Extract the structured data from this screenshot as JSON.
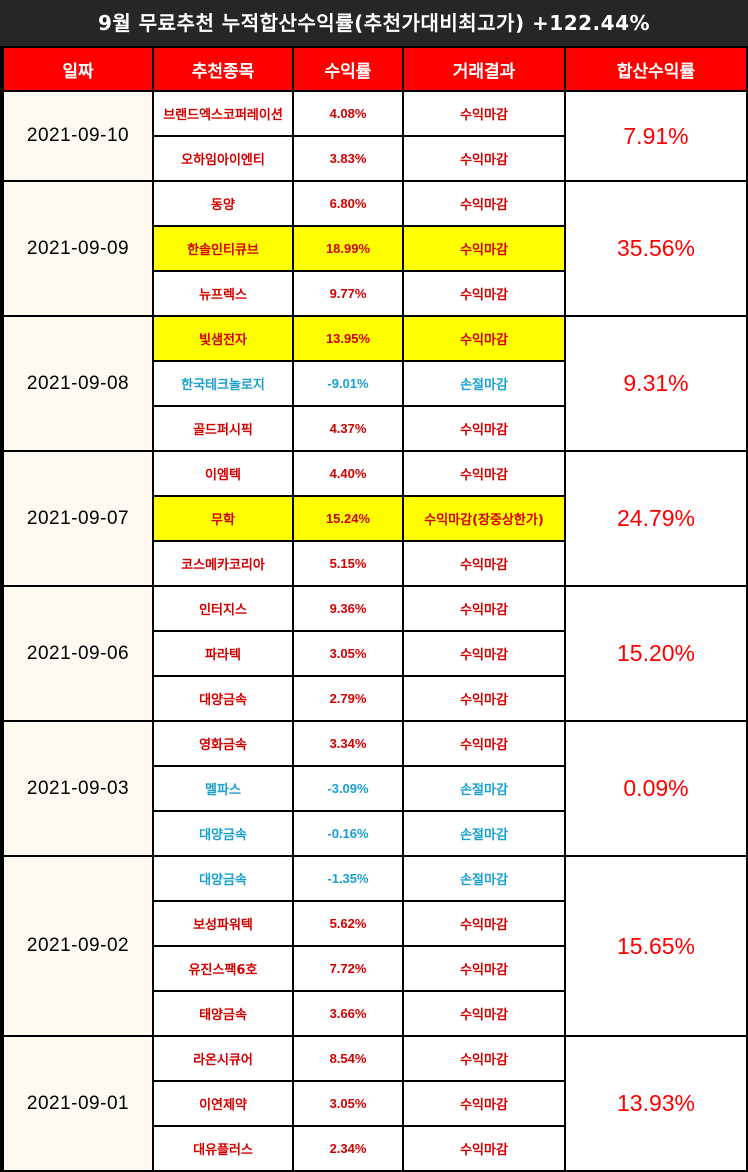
{
  "title": "9월 무료추천 누적합산수익률(추천가대비최고가) +122.44%",
  "headers": {
    "date": "일짜",
    "stock": "추천종목",
    "rate": "수익률",
    "result": "거래결과",
    "total": "합산수익률"
  },
  "colors": {
    "header_bg": "#ff0000",
    "profit_text": "#d40000",
    "loss_text": "#1aa0d0",
    "highlight_bg": "#ffff00",
    "date_bg": "#fff9f0"
  },
  "groups": [
    {
      "date": "2021-09-10",
      "total": "7.91%",
      "rows": [
        {
          "stock": "브랜드엑스코퍼레이션",
          "rate": "4.08%",
          "result": "수익마감",
          "type": "profit",
          "highlight": false
        },
        {
          "stock": "오하임아이엔티",
          "rate": "3.83%",
          "result": "수익마감",
          "type": "profit",
          "highlight": false
        }
      ]
    },
    {
      "date": "2021-09-09",
      "total": "35.56%",
      "rows": [
        {
          "stock": "동양",
          "rate": "6.80%",
          "result": "수익마감",
          "type": "profit",
          "highlight": false
        },
        {
          "stock": "한솔인티큐브",
          "rate": "18.99%",
          "result": "수익마감",
          "type": "profit",
          "highlight": true
        },
        {
          "stock": "뉴프렉스",
          "rate": "9.77%",
          "result": "수익마감",
          "type": "profit",
          "highlight": false
        }
      ]
    },
    {
      "date": "2021-09-08",
      "total": "9.31%",
      "rows": [
        {
          "stock": "빛샘전자",
          "rate": "13.95%",
          "result": "수익마감",
          "type": "profit",
          "highlight": true
        },
        {
          "stock": "한국테크놀로지",
          "rate": "-9.01%",
          "result": "손절마감",
          "type": "loss",
          "highlight": false
        },
        {
          "stock": "골드퍼시픽",
          "rate": "4.37%",
          "result": "수익마감",
          "type": "profit",
          "highlight": false
        }
      ]
    },
    {
      "date": "2021-09-07",
      "total": "24.79%",
      "rows": [
        {
          "stock": "이엠텍",
          "rate": "4.40%",
          "result": "수익마감",
          "type": "profit",
          "highlight": false
        },
        {
          "stock": "무학",
          "rate": "15.24%",
          "result": "수익마감(장중상한가)",
          "type": "profit",
          "highlight": true
        },
        {
          "stock": "코스메카코리아",
          "rate": "5.15%",
          "result": "수익마감",
          "type": "profit",
          "highlight": false
        }
      ]
    },
    {
      "date": "2021-09-06",
      "total": "15.20%",
      "rows": [
        {
          "stock": "인터지스",
          "rate": "9.36%",
          "result": "수익마감",
          "type": "profit",
          "highlight": false
        },
        {
          "stock": "파라텍",
          "rate": "3.05%",
          "result": "수익마감",
          "type": "profit",
          "highlight": false
        },
        {
          "stock": "대양금속",
          "rate": "2.79%",
          "result": "수익마감",
          "type": "profit",
          "highlight": false
        }
      ]
    },
    {
      "date": "2021-09-03",
      "total": "0.09%",
      "rows": [
        {
          "stock": "영화금속",
          "rate": "3.34%",
          "result": "수익마감",
          "type": "profit",
          "highlight": false
        },
        {
          "stock": "멜파스",
          "rate": "-3.09%",
          "result": "손절마감",
          "type": "loss",
          "highlight": false
        },
        {
          "stock": "대양금속",
          "rate": "-0.16%",
          "result": "손절마감",
          "type": "loss",
          "highlight": false
        }
      ]
    },
    {
      "date": "2021-09-02",
      "total": "15.65%",
      "rows": [
        {
          "stock": "대양금속",
          "rate": "-1.35%",
          "result": "손절마감",
          "type": "loss",
          "highlight": false
        },
        {
          "stock": "보성파워텍",
          "rate": "5.62%",
          "result": "수익마감",
          "type": "profit",
          "highlight": false
        },
        {
          "stock": "유진스팩6호",
          "rate": "7.72%",
          "result": "수익마감",
          "type": "profit",
          "highlight": false
        },
        {
          "stock": "태양금속",
          "rate": "3.66%",
          "result": "수익마감",
          "type": "profit",
          "highlight": false
        }
      ]
    },
    {
      "date": "2021-09-01",
      "total": "13.93%",
      "rows": [
        {
          "stock": "라온시큐어",
          "rate": "8.54%",
          "result": "수익마감",
          "type": "profit",
          "highlight": false
        },
        {
          "stock": "이연제약",
          "rate": "3.05%",
          "result": "수익마감",
          "type": "profit",
          "highlight": false
        },
        {
          "stock": "대유플러스",
          "rate": "2.34%",
          "result": "수익마감",
          "type": "profit",
          "highlight": false
        }
      ]
    }
  ]
}
